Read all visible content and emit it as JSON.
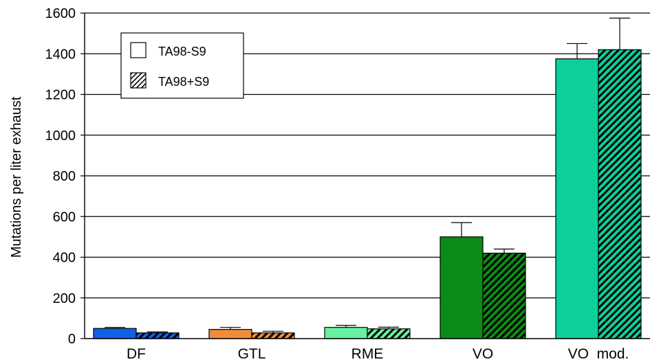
{
  "chart_data": {
    "type": "bar",
    "title": "",
    "xlabel": "",
    "ylabel": "Mutations per liter exhaust",
    "ylim": [
      0,
      1600
    ],
    "yticks": [
      0,
      200,
      400,
      600,
      800,
      1000,
      1200,
      1400,
      1600
    ],
    "grid": true,
    "legend_position": "top-left",
    "categories": [
      "DF",
      "GTL",
      "RME",
      "VO",
      "VO  mod."
    ],
    "category_colors": [
      "#1060e8",
      "#f08c38",
      "#66f2a0",
      "#0a8c16",
      "#0ccf9c"
    ],
    "series": [
      {
        "name": "TA98-S9",
        "pattern": "solid",
        "values": [
          50,
          45,
          55,
          500,
          1375
        ],
        "errors": [
          5,
          10,
          10,
          70,
          75
        ]
      },
      {
        "name": "TA98+S9",
        "pattern": "hatched",
        "values": [
          28,
          28,
          48,
          420,
          1420
        ],
        "errors": [
          5,
          8,
          8,
          20,
          155
        ]
      }
    ]
  }
}
